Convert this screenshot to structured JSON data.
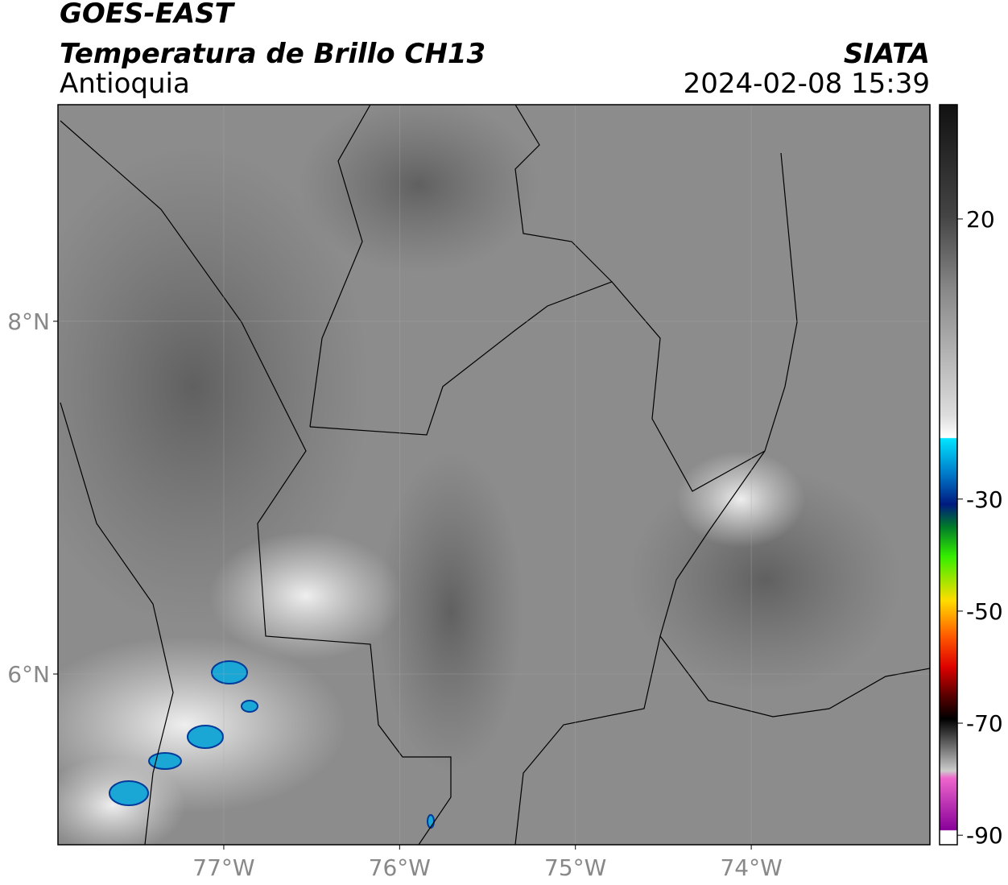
{
  "header": {
    "title": "GOES-EAST",
    "subtitle": "Temperatura de Brillo CH13",
    "region": "Antioquia",
    "source": "SIATA",
    "timestamp": "2024-02-08 15:39"
  },
  "map": {
    "xlim": [
      -77.943,
      -72.984
    ],
    "ylim": [
      5.032,
      9.228
    ],
    "xticks": [
      {
        "value": -77,
        "label": "77°W"
      },
      {
        "value": -76,
        "label": "76°W"
      },
      {
        "value": -75,
        "label": "75°W"
      },
      {
        "value": -74,
        "label": "74°W"
      }
    ],
    "yticks": [
      {
        "value": 8,
        "label": "8°N"
      },
      {
        "value": 6,
        "label": "6°N"
      }
    ],
    "grid": true
  },
  "colorbar": {
    "lim": [
      -91.7,
      40.4
    ],
    "ticks": [
      20,
      -30,
      -50,
      -70,
      -90
    ]
  }
}
